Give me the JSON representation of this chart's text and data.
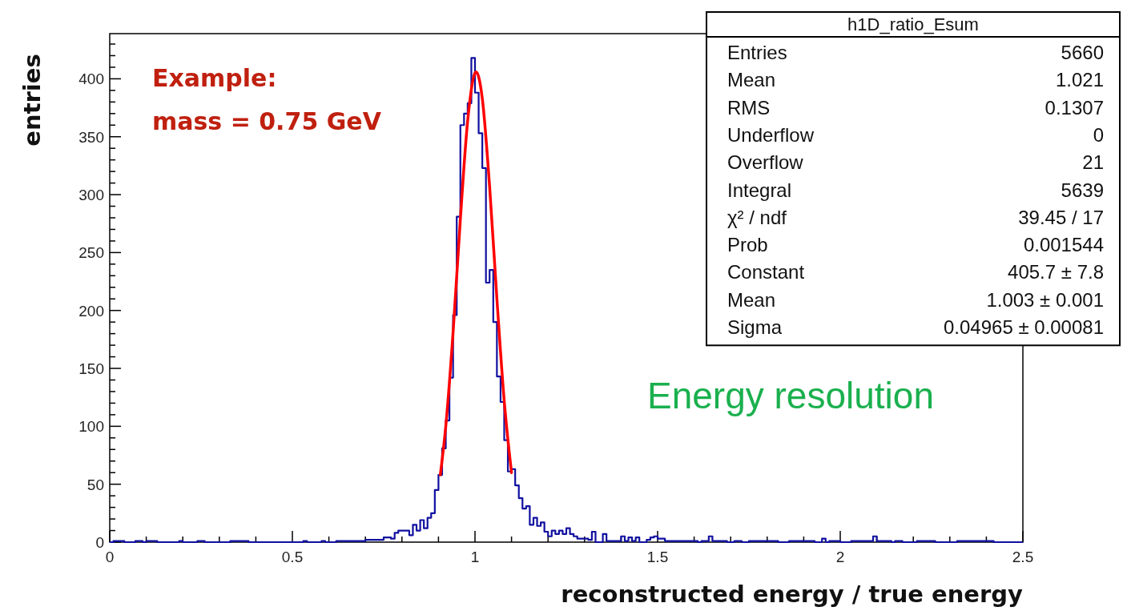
{
  "chart_data": {
    "type": "histogram",
    "title": "h1D_ratio_Esum",
    "xlabel": "reconstructed energy / true energy",
    "ylabel": "entries",
    "xlim": [
      0,
      2.5
    ],
    "ylim": [
      0,
      439
    ],
    "xticks": [
      0,
      {
        "value": 0.1,
        "label": null
      },
      {
        "value": 0.2,
        "label": null
      },
      {
        "value": 0.3,
        "label": null
      },
      {
        "value": 0.4,
        "label": null
      },
      0.5,
      {
        "value": 0.6,
        "label": null
      },
      {
        "value": 0.7,
        "label": null
      },
      {
        "value": 0.8,
        "label": null
      },
      {
        "value": 0.9,
        "label": null
      },
      1,
      {
        "value": 1.1,
        "label": null
      },
      {
        "value": 1.2,
        "label": null
      },
      {
        "value": 1.3,
        "label": null
      },
      {
        "value": 1.4,
        "label": null
      },
      1.5,
      {
        "value": 1.6,
        "label": null
      },
      {
        "value": 1.7,
        "label": null
      },
      {
        "value": 1.8,
        "label": null
      },
      {
        "value": 1.9,
        "label": null
      },
      2,
      {
        "value": 2.1,
        "label": null
      },
      {
        "value": 2.2,
        "label": null
      },
      {
        "value": 2.3,
        "label": null
      },
      {
        "value": 2.4,
        "label": null
      },
      2.5
    ],
    "yticks": [
      0,
      {
        "value": 10,
        "label": null
      },
      {
        "value": 20,
        "label": null
      },
      {
        "value": 30,
        "label": null
      },
      {
        "value": 40,
        "label": null
      },
      50,
      {
        "value": 60,
        "label": null
      },
      {
        "value": 70,
        "label": null
      },
      {
        "value": 80,
        "label": null
      },
      {
        "value": 90,
        "label": null
      },
      100,
      {
        "value": 110,
        "label": null
      },
      {
        "value": 120,
        "label": null
      },
      {
        "value": 130,
        "label": null
      },
      {
        "value": 140,
        "label": null
      },
      150,
      {
        "value": 160,
        "label": null
      },
      {
        "value": 170,
        "label": null
      },
      {
        "value": 180,
        "label": null
      },
      {
        "value": 190,
        "label": null
      },
      200,
      {
        "value": 210,
        "label": null
      },
      {
        "value": 220,
        "label": null
      },
      {
        "value": 230,
        "label": null
      },
      {
        "value": 240,
        "label": null
      },
      250,
      {
        "value": 260,
        "label": null
      },
      {
        "value": 270,
        "label": null
      },
      {
        "value": 280,
        "label": null
      },
      {
        "value": 290,
        "label": null
      },
      300,
      {
        "value": 310,
        "label": null
      },
      {
        "value": 320,
        "label": null
      },
      {
        "value": 330,
        "label": null
      },
      {
        "value": 340,
        "label": null
      },
      350,
      {
        "value": 360,
        "label": null
      },
      {
        "value": 370,
        "label": null
      },
      {
        "value": 380,
        "label": null
      },
      {
        "value": 390,
        "label": null
      },
      400,
      {
        "value": 410,
        "label": null
      },
      {
        "value": 420,
        "label": null
      },
      {
        "value": 430,
        "label": null
      }
    ],
    "bins": [
      0,
      0.01,
      0.02,
      0.03,
      0.04,
      0.05,
      0.06,
      0.07,
      0.08,
      0.09,
      0.1,
      0.11,
      0.12,
      0.13,
      0.14,
      0.15,
      0.16,
      0.17,
      0.18,
      0.19,
      0.2,
      0.21,
      0.22,
      0.23,
      0.24,
      0.25,
      0.26,
      0.27,
      0.28,
      0.29,
      0.3,
      0.31,
      0.32,
      0.33,
      0.34,
      0.35,
      0.36,
      0.37,
      0.38,
      0.39,
      0.4,
      0.41,
      0.42,
      0.43,
      0.44,
      0.45,
      0.46,
      0.47,
      0.48,
      0.49,
      0.5,
      0.51,
      0.52,
      0.53,
      0.54,
      0.55,
      0.56,
      0.57,
      0.58,
      0.59,
      0.6,
      0.61,
      0.62,
      0.63,
      0.64,
      0.65,
      0.66,
      0.67,
      0.68,
      0.69,
      0.7,
      0.71,
      0.72,
      0.73,
      0.74,
      0.75,
      0.76,
      0.77,
      0.78,
      0.79,
      0.8,
      0.81,
      0.82,
      0.83,
      0.84,
      0.85,
      0.86,
      0.87,
      0.88,
      0.89,
      0.9,
      0.91,
      0.92,
      0.93,
      0.94,
      0.95,
      0.96,
      0.97,
      0.98,
      0.99,
      1,
      1.01,
      1.02,
      1.03,
      1.04,
      1.05,
      1.06,
      1.07,
      1.08,
      1.09,
      1.1,
      1.11,
      1.12,
      1.13,
      1.14,
      1.15,
      1.16,
      1.17,
      1.18,
      1.19,
      1.2,
      1.21,
      1.22,
      1.23,
      1.24,
      1.25,
      1.26,
      1.27,
      1.28,
      1.29,
      1.3,
      1.31,
      1.32,
      1.33,
      1.34,
      1.35,
      1.36,
      1.37,
      1.38,
      1.39,
      1.4,
      1.41,
      1.42,
      1.43,
      1.44,
      1.45,
      1.46,
      1.47,
      1.48,
      1.49,
      1.5,
      1.51,
      1.52,
      1.53,
      1.54,
      1.55,
      1.56,
      1.57,
      1.58,
      1.59,
      1.6,
      1.61,
      1.62,
      1.63,
      1.64,
      1.65,
      1.66,
      1.67,
      1.68,
      1.69,
      1.7,
      1.71,
      1.72,
      1.73,
      1.74,
      1.75,
      1.76,
      1.77,
      1.78,
      1.79,
      1.8,
      1.81,
      1.82,
      1.83,
      1.84,
      1.85,
      1.86,
      1.87,
      1.88,
      1.89,
      1.9,
      1.91,
      1.92,
      1.93,
      1.94,
      1.95,
      1.96,
      1.97,
      1.98,
      1.99,
      2,
      2.01,
      2.02,
      2.03,
      2.04,
      2.05,
      2.06,
      2.07,
      2.08,
      2.09,
      2.1,
      2.11,
      2.12,
      2.13,
      2.14,
      2.15,
      2.16,
      2.17,
      2.18,
      2.19,
      2.2,
      2.21,
      2.22,
      2.23,
      2.24,
      2.25,
      2.26,
      2.27,
      2.28,
      2.29,
      2.3,
      2.31,
      2.32,
      2.33,
      2.34,
      2.35,
      2.36,
      2.37,
      2.38,
      2.39,
      2.4,
      2.41,
      2.42,
      2.43,
      2.44,
      2.45,
      2.46,
      2.47,
      2.48,
      2.49,
      2.5
    ],
    "series": [
      {
        "type": "histogram",
        "color": "#1010a0",
        "values": [
          0,
          1,
          1,
          1,
          0,
          0,
          0,
          1,
          1,
          0,
          1,
          1,
          1,
          0,
          0,
          0,
          0,
          0,
          0,
          1,
          0,
          0,
          0,
          0,
          1,
          1,
          0,
          0,
          0,
          0,
          0,
          0,
          0,
          1,
          1,
          1,
          1,
          1,
          0,
          0,
          0,
          0,
          0,
          0,
          0,
          0,
          0,
          0,
          0,
          0,
          0,
          0,
          0,
          1,
          0,
          0,
          0,
          0,
          1,
          0,
          0,
          0,
          1,
          1,
          1,
          1,
          1,
          1,
          1,
          1,
          2,
          2,
          2,
          2,
          2,
          4,
          4,
          3,
          8,
          10,
          10,
          10,
          6,
          15,
          10,
          19,
          12,
          21,
          25,
          45,
          58,
          81,
          105,
          142,
          196,
          281,
          360,
          370,
          379,
          418,
          388,
          353,
          323,
          224,
          235,
          190,
          143,
          121,
          88,
          61,
          63,
          49,
          38,
          29,
          31,
          15,
          21,
          14,
          17,
          9,
          5,
          10,
          7,
          10,
          7,
          12,
          7,
          5,
          3,
          3,
          3,
          2,
          9,
          0,
          0,
          7,
          1,
          1,
          1,
          1,
          5,
          1,
          4,
          1,
          4,
          0,
          0,
          2,
          4,
          5,
          3,
          3,
          1,
          1,
          1,
          1,
          1,
          1,
          1,
          1,
          1,
          0,
          1,
          1,
          5,
          1,
          1,
          1,
          1,
          0,
          0,
          1,
          1,
          0,
          0,
          1,
          1,
          1,
          1,
          1,
          1,
          1,
          1,
          0,
          0,
          0,
          1,
          1,
          1,
          1,
          1,
          1,
          1,
          0,
          0,
          3,
          0,
          1,
          1,
          1,
          0,
          0,
          0,
          1,
          1,
          1,
          1,
          1,
          1,
          5,
          1,
          1,
          1,
          1,
          0,
          1,
          1,
          0,
          0,
          0,
          0,
          1,
          1,
          1,
          1,
          1,
          0,
          0,
          0,
          0,
          0,
          0,
          1,
          1,
          1,
          1,
          1,
          1,
          1,
          1,
          1,
          1,
          0,
          0,
          0,
          0,
          0,
          0,
          0,
          0
        ]
      },
      {
        "type": "line",
        "color": "#ff0000",
        "x": [
          0.905,
          0.92,
          0.94,
          0.96,
          0.98,
          1.0,
          1.003,
          1.02,
          1.04,
          1.06,
          1.08,
          1.1
        ],
        "values": [
          58,
          100,
          181,
          279,
          364,
          405,
          406,
          383,
          307,
          210,
          122,
          60
        ]
      }
    ],
    "annotations": [
      "Example:",
      "mass = 0.75 GeV",
      "Energy resolution",
      "Entries",
      "5660",
      "Mean",
      "1.021",
      "RMS",
      "0.1307",
      "Underflow",
      "0",
      "Overflow",
      "21",
      "Integral",
      "5639",
      "χ² / ndf",
      "39.45 / 17",
      "Prob",
      "0.001544",
      "Constant",
      "405.7 ± 7.8",
      "Mean",
      "1.003 ± 0.001",
      "Sigma",
      "0.04965 ± 0.00081"
    ]
  }
}
